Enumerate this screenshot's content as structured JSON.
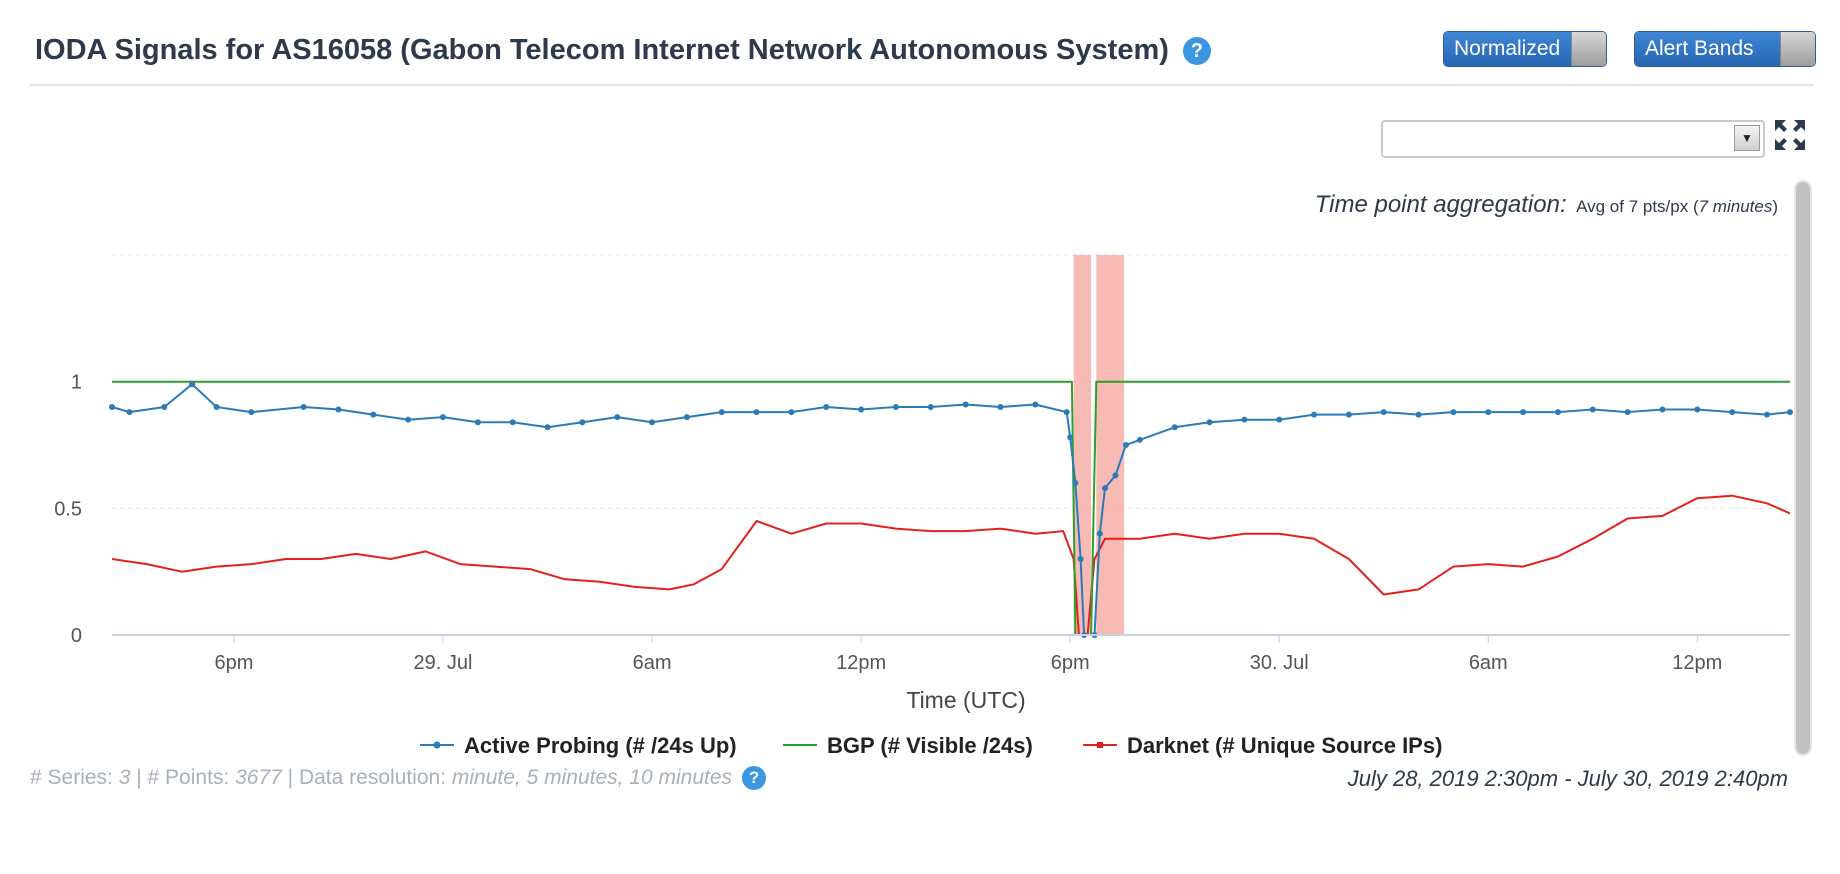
{
  "header": {
    "title": "IODA Signals for AS16058 (Gabon Telecom Internet Network Autonomous System)",
    "help_glyph": "?",
    "normalized_label": "Normalized",
    "alert_bands_label": "Alert Bands"
  },
  "aggregation": {
    "label": "Time point aggregation:",
    "value_prefix": "Avg of 7 pts/px (",
    "value_italic": "7 minutes",
    "value_suffix": ")"
  },
  "footer": {
    "series_label": "# Series:",
    "series_value": "3",
    "points_label": "| # Points:",
    "points_value": "3677",
    "resolution_label": "| Data resolution:",
    "resolution_value": "minute, 5 minutes, 10 minutes",
    "help_glyph": "?",
    "time_range": "July 28, 2019 2:30pm - July 30, 2019 2:40pm"
  },
  "colors": {
    "active_probing": "#2b7bb9",
    "bgp": "#2ca02c",
    "darknet": "#e3211c",
    "alert_band": "#f4a39b",
    "accent": "#3a96e0"
  },
  "chart_data": {
    "type": "line",
    "title": "",
    "xlabel": "Time (UTC)",
    "ylabel": "",
    "ylim": [
      0,
      1.5
    ],
    "x_range_hours": [
      14.5,
      62.66
    ],
    "x_unit": "hours since July 28, 2019 00:00 UTC",
    "x_ticks": [
      {
        "x": 18,
        "label": "6pm"
      },
      {
        "x": 24,
        "label": "29. Jul"
      },
      {
        "x": 30,
        "label": "6am"
      },
      {
        "x": 36,
        "label": "12pm"
      },
      {
        "x": 42,
        "label": "6pm"
      },
      {
        "x": 48,
        "label": "30. Jul"
      },
      {
        "x": 54,
        "label": "6am"
      },
      {
        "x": 60,
        "label": "12pm"
      }
    ],
    "y_ticks": [
      {
        "y": 0,
        "label": "0"
      },
      {
        "y": 0.5,
        "label": "0.5"
      },
      {
        "y": 1,
        "label": "1"
      }
    ],
    "alert_bands": [
      [
        42.1,
        42.6
      ],
      [
        42.75,
        43.55
      ]
    ],
    "series": [
      {
        "name": "Active Probing (# /24s Up)",
        "color": "#2b7bb9",
        "markers": true,
        "points": [
          [
            14.5,
            0.9
          ],
          [
            15.0,
            0.88
          ],
          [
            16.0,
            0.9
          ],
          [
            16.8,
            0.99
          ],
          [
            17.5,
            0.9
          ],
          [
            18.5,
            0.88
          ],
          [
            20.0,
            0.9
          ],
          [
            21.0,
            0.89
          ],
          [
            22.0,
            0.87
          ],
          [
            23.0,
            0.85
          ],
          [
            24.0,
            0.86
          ],
          [
            25.0,
            0.84
          ],
          [
            26.0,
            0.84
          ],
          [
            27.0,
            0.82
          ],
          [
            28.0,
            0.84
          ],
          [
            29.0,
            0.86
          ],
          [
            30.0,
            0.84
          ],
          [
            31.0,
            0.86
          ],
          [
            32.0,
            0.88
          ],
          [
            33.0,
            0.88
          ],
          [
            34.0,
            0.88
          ],
          [
            35.0,
            0.9
          ],
          [
            36.0,
            0.89
          ],
          [
            37.0,
            0.9
          ],
          [
            38.0,
            0.9
          ],
          [
            39.0,
            0.91
          ],
          [
            40.0,
            0.9
          ],
          [
            41.0,
            0.91
          ],
          [
            41.9,
            0.88
          ],
          [
            42.0,
            0.78
          ],
          [
            42.15,
            0.6
          ],
          [
            42.3,
            0.3
          ],
          [
            42.4,
            0.0
          ],
          [
            42.7,
            0.0
          ],
          [
            42.85,
            0.4
          ],
          [
            43.0,
            0.58
          ],
          [
            43.3,
            0.63
          ],
          [
            43.6,
            0.75
          ],
          [
            44.0,
            0.77
          ],
          [
            45.0,
            0.82
          ],
          [
            46.0,
            0.84
          ],
          [
            47.0,
            0.85
          ],
          [
            48.0,
            0.85
          ],
          [
            49.0,
            0.87
          ],
          [
            50.0,
            0.87
          ],
          [
            51.0,
            0.88
          ],
          [
            52.0,
            0.87
          ],
          [
            53.0,
            0.88
          ],
          [
            54.0,
            0.88
          ],
          [
            55.0,
            0.88
          ],
          [
            56.0,
            0.88
          ],
          [
            57.0,
            0.89
          ],
          [
            58.0,
            0.88
          ],
          [
            59.0,
            0.89
          ],
          [
            60.0,
            0.89
          ],
          [
            61.0,
            0.88
          ],
          [
            62.0,
            0.87
          ],
          [
            62.66,
            0.88
          ]
        ]
      },
      {
        "name": "BGP (# Visible /24s)",
        "color": "#2ca02c",
        "markers": false,
        "points": [
          [
            14.5,
            1.0
          ],
          [
            42.05,
            1.0
          ],
          [
            42.15,
            0.0
          ],
          [
            42.6,
            0.0
          ],
          [
            42.75,
            1.0
          ],
          [
            62.66,
            1.0
          ]
        ]
      },
      {
        "name": "Darknet (# Unique Source IPs)",
        "color": "#e3211c",
        "markers": false,
        "points": [
          [
            14.5,
            0.3
          ],
          [
            15.5,
            0.28
          ],
          [
            16.5,
            0.25
          ],
          [
            17.5,
            0.27
          ],
          [
            18.5,
            0.28
          ],
          [
            19.5,
            0.3
          ],
          [
            20.5,
            0.3
          ],
          [
            21.5,
            0.32
          ],
          [
            22.5,
            0.3
          ],
          [
            23.5,
            0.33
          ],
          [
            24.5,
            0.28
          ],
          [
            25.5,
            0.27
          ],
          [
            26.5,
            0.26
          ],
          [
            27.5,
            0.22
          ],
          [
            28.5,
            0.21
          ],
          [
            29.5,
            0.19
          ],
          [
            30.5,
            0.18
          ],
          [
            31.2,
            0.2
          ],
          [
            32.0,
            0.26
          ],
          [
            33.0,
            0.45
          ],
          [
            34.0,
            0.4
          ],
          [
            35.0,
            0.44
          ],
          [
            36.0,
            0.44
          ],
          [
            37.0,
            0.42
          ],
          [
            38.0,
            0.41
          ],
          [
            39.0,
            0.41
          ],
          [
            40.0,
            0.42
          ],
          [
            41.0,
            0.4
          ],
          [
            41.8,
            0.41
          ],
          [
            42.1,
            0.3
          ],
          [
            42.25,
            0.0
          ],
          [
            42.5,
            0.0
          ],
          [
            42.7,
            0.3
          ],
          [
            43.0,
            0.38
          ],
          [
            44.0,
            0.38
          ],
          [
            45.0,
            0.4
          ],
          [
            46.0,
            0.38
          ],
          [
            47.0,
            0.4
          ],
          [
            48.0,
            0.4
          ],
          [
            49.0,
            0.38
          ],
          [
            50.0,
            0.3
          ],
          [
            51.0,
            0.16
          ],
          [
            52.0,
            0.18
          ],
          [
            53.0,
            0.27
          ],
          [
            54.0,
            0.28
          ],
          [
            55.0,
            0.27
          ],
          [
            56.0,
            0.31
          ],
          [
            57.0,
            0.38
          ],
          [
            58.0,
            0.46
          ],
          [
            59.0,
            0.47
          ],
          [
            60.0,
            0.54
          ],
          [
            61.0,
            0.55
          ],
          [
            62.0,
            0.52
          ],
          [
            62.66,
            0.48
          ]
        ]
      }
    ],
    "legend": "bottom-center",
    "grid": true
  }
}
